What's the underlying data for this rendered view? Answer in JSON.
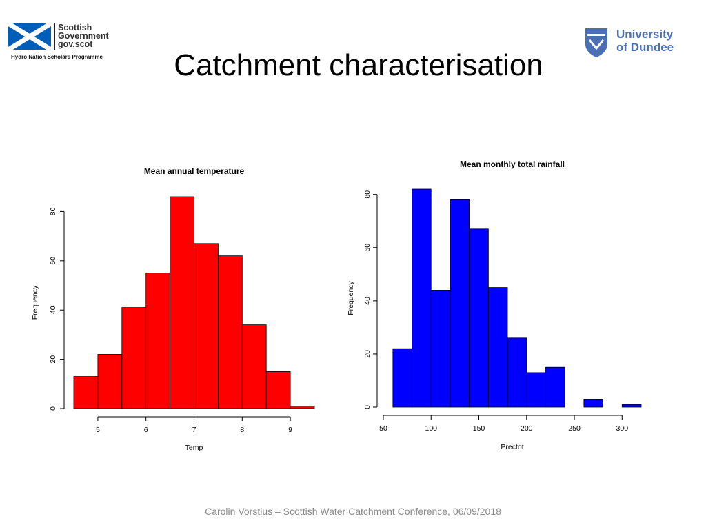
{
  "slide": {
    "title": "Catchment characterisation",
    "footer": "Carolin Vorstius – Scottish Water Catchment Conference, 06/09/2018"
  },
  "logos": {
    "left": {
      "lines": [
        "Scottish",
        "Government",
        "gov.scot"
      ],
      "subtitle": "Hydro Nation Scholars Programme",
      "flag_blue": "#005EB8"
    },
    "right": {
      "lines": [
        "University",
        "of Dundee"
      ],
      "color": "#4A6FB5"
    }
  },
  "chart_data": [
    {
      "type": "bar",
      "title": "Mean annual temperature",
      "xlabel": "Temp",
      "ylabel": "Frequency",
      "bin_edges": [
        4.5,
        5,
        5.5,
        6,
        6.5,
        7,
        7.5,
        8,
        8.5,
        9,
        9.5
      ],
      "values": [
        13,
        22,
        41,
        55,
        86,
        67,
        62,
        34,
        15,
        1
      ],
      "xlim": [
        4.5,
        9.5
      ],
      "ylim": [
        0,
        86
      ],
      "xticks": [
        5,
        6,
        7,
        8,
        9
      ],
      "yticks": [
        0,
        20,
        40,
        60,
        80
      ],
      "color": "#FF0000"
    },
    {
      "type": "bar",
      "title": "Mean monthly total rainfall",
      "xlabel": "Prectot",
      "ylabel": "Frequency",
      "bin_edges": [
        60,
        80,
        100,
        120,
        140,
        160,
        180,
        200,
        220,
        240,
        260,
        280,
        300,
        320
      ],
      "values": [
        22,
        82,
        44,
        78,
        67,
        45,
        26,
        13,
        15,
        0,
        3,
        0,
        1
      ],
      "xlim": [
        50,
        320
      ],
      "ylim": [
        0,
        82
      ],
      "xticks": [
        50,
        100,
        150,
        200,
        250,
        300
      ],
      "yticks": [
        0,
        20,
        40,
        60,
        80
      ],
      "color": "#0000FF"
    }
  ]
}
